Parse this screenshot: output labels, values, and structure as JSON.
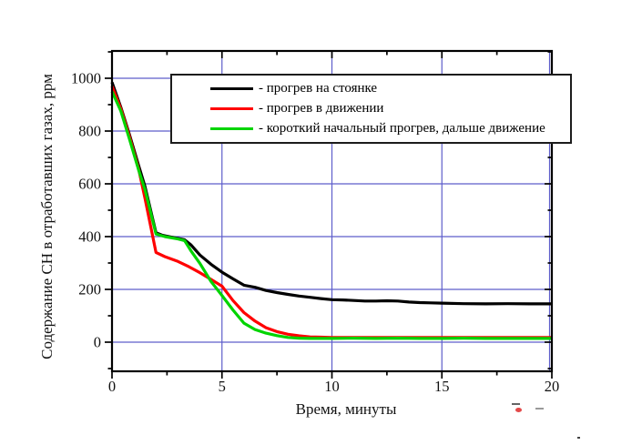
{
  "figure": {
    "background": "#ffffff"
  },
  "chart_data": {
    "type": "line",
    "title": "",
    "xlabel": "Время, минуты",
    "ylabel": "Содержание СН в отработавших газах, ррм",
    "xlim": [
      0,
      20
    ],
    "ylim": [
      0,
      1000
    ],
    "x_ticks_major": [
      0,
      5,
      10,
      15,
      20
    ],
    "x_ticks_minor": [
      2.5,
      7.5,
      12.5,
      17.5
    ],
    "y_ticks_major": [
      0,
      200,
      400,
      600,
      800,
      1000
    ],
    "y_ticks_minor": [
      -100,
      100,
      300,
      500,
      700,
      900,
      1100
    ],
    "grid": {
      "vertical_at": [
        5,
        10,
        15,
        20
      ],
      "horizontal_at": [
        0,
        200,
        400,
        600,
        800,
        1000
      ],
      "color": "#5e5ecb"
    },
    "legend": {
      "position": "inside-top-right",
      "border_color": "#1c1c1c"
    },
    "frame_color": "#000000",
    "series": [
      {
        "name": "progrev-na-stoyanke",
        "label": "- прогрев на стоянке",
        "color": "#000000",
        "points": [
          [
            0,
            985
          ],
          [
            0.4,
            890
          ],
          [
            0.8,
            785
          ],
          [
            1.2,
            672
          ],
          [
            1.5,
            590
          ],
          [
            2,
            415
          ],
          [
            2.3,
            405
          ],
          [
            2.7,
            398
          ],
          [
            3,
            393
          ],
          [
            3.3,
            388
          ],
          [
            3.6,
            368
          ],
          [
            4,
            330
          ],
          [
            4.5,
            295
          ],
          [
            5,
            265
          ],
          [
            5.5,
            240
          ],
          [
            6,
            216
          ],
          [
            6.5,
            208
          ],
          [
            7,
            196
          ],
          [
            7.5,
            188
          ],
          [
            8,
            181
          ],
          [
            8.5,
            175
          ],
          [
            9,
            170
          ],
          [
            9.5,
            165
          ],
          [
            10,
            161
          ],
          [
            10.5,
            160
          ],
          [
            11,
            158
          ],
          [
            11.5,
            156
          ],
          [
            12,
            156
          ],
          [
            12.5,
            157
          ],
          [
            13,
            156
          ],
          [
            13.5,
            152
          ],
          [
            14,
            150
          ],
          [
            14.5,
            149
          ],
          [
            15,
            148
          ],
          [
            16,
            146
          ],
          [
            17,
            145
          ],
          [
            18,
            146
          ],
          [
            19,
            145
          ],
          [
            20,
            145
          ]
        ]
      },
      {
        "name": "progrev-v-dvizhenii",
        "label": "- прогрев в движении",
        "color": "#ff0000",
        "points": [
          [
            0,
            970
          ],
          [
            0.4,
            885
          ],
          [
            0.8,
            778
          ],
          [
            1.2,
            660
          ],
          [
            1.5,
            545
          ],
          [
            2,
            340
          ],
          [
            2.4,
            324
          ],
          [
            3,
            306
          ],
          [
            3.5,
            286
          ],
          [
            4,
            263
          ],
          [
            4.5,
            238
          ],
          [
            5,
            212
          ],
          [
            5.5,
            158
          ],
          [
            6,
            112
          ],
          [
            6.5,
            80
          ],
          [
            7,
            55
          ],
          [
            7.5,
            40
          ],
          [
            8,
            30
          ],
          [
            8.5,
            24
          ],
          [
            9,
            20
          ],
          [
            9.5,
            19
          ],
          [
            10,
            18
          ],
          [
            11,
            18
          ],
          [
            12,
            18
          ],
          [
            13,
            18
          ],
          [
            14,
            18
          ],
          [
            15,
            18
          ],
          [
            16,
            18
          ],
          [
            17,
            18
          ],
          [
            18,
            18
          ],
          [
            19,
            18
          ],
          [
            20,
            18
          ]
        ]
      },
      {
        "name": "korotkiy-nachalnyy-progrev",
        "label": "- короткий начальный прогрев, дальше движение",
        "color": "#00d400",
        "points": [
          [
            0,
            950
          ],
          [
            0.4,
            876
          ],
          [
            0.8,
            768
          ],
          [
            1.2,
            655
          ],
          [
            1.5,
            578
          ],
          [
            2,
            410
          ],
          [
            2.4,
            400
          ],
          [
            3,
            391
          ],
          [
            3.3,
            385
          ],
          [
            3.6,
            345
          ],
          [
            4,
            298
          ],
          [
            4.5,
            230
          ],
          [
            5,
            177
          ],
          [
            5.5,
            122
          ],
          [
            6,
            72
          ],
          [
            6.5,
            48
          ],
          [
            7,
            34
          ],
          [
            7.5,
            25
          ],
          [
            8,
            18
          ],
          [
            8.5,
            15
          ],
          [
            9,
            14
          ],
          [
            10,
            14
          ],
          [
            11,
            15
          ],
          [
            12,
            14
          ],
          [
            13,
            15
          ],
          [
            14,
            14
          ],
          [
            15,
            14
          ],
          [
            16,
            15
          ],
          [
            17,
            14
          ],
          [
            18,
            14
          ],
          [
            19,
            14
          ],
          [
            20,
            14
          ]
        ]
      }
    ]
  }
}
